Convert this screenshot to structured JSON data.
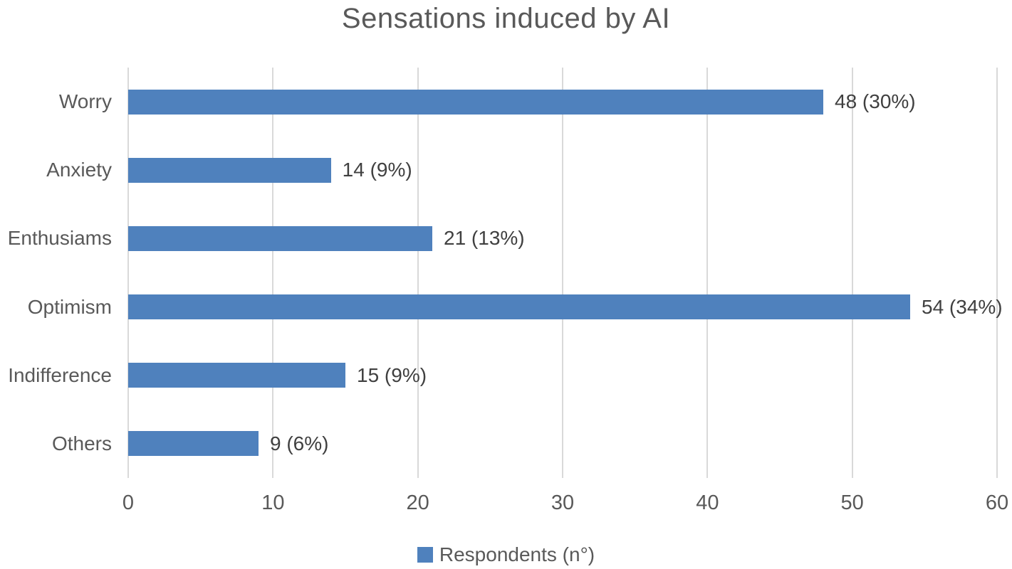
{
  "title": "Sensations induced by AI",
  "legend": {
    "label": "Respondents (n°)"
  },
  "colors": {
    "bar": "#4f81bd",
    "title_text": "#595959",
    "axis_text": "#595959",
    "data_label_text": "#404040",
    "gridline": "#d9d9d9",
    "background": "#ffffff"
  },
  "chart_data": {
    "type": "bar",
    "orientation": "horizontal",
    "title": "Sensations induced by AI",
    "categories": [
      "Worry",
      "Anxiety",
      "Enthusiams",
      "Optimism",
      "Indifference",
      "Others"
    ],
    "series": [
      {
        "name": "Respondents (n°)",
        "values": [
          48,
          14,
          21,
          54,
          15,
          9
        ],
        "data_labels": [
          "48 (30%)",
          "14 (9%)",
          "21 (13%)",
          "54 (34%)",
          "15 (9%)",
          "9 (6%)"
        ]
      }
    ],
    "percentages": [
      30,
      9,
      13,
      34,
      9,
      6
    ],
    "xlabel": "",
    "ylabel": "",
    "xlim": [
      0,
      60
    ],
    "x_ticks": [
      0,
      10,
      20,
      30,
      40,
      50,
      60
    ],
    "grid": true,
    "legend_position": "bottom"
  }
}
